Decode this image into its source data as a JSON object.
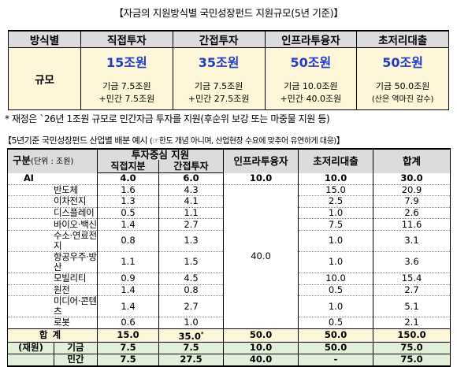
{
  "title1": "【자금의 지원방식별 국민성장펀드 지원규모(5년 기준)】",
  "table1": {
    "corner": "방식별",
    "row_label": "규모",
    "columns": [
      {
        "header": "직접투자",
        "total": "15조원",
        "sub1": "기금 7.5조원",
        "sub2": "+민간 7.5조원"
      },
      {
        "header": "간접투자",
        "total": "35조원",
        "sub1": "기금 7.5조원",
        "sub2": "+민간 27.5조원"
      },
      {
        "header": "인프라투융자",
        "total": "50조원",
        "sub1": "기금 10.0조원",
        "sub2": "+민간 40.0조원"
      },
      {
        "header": "초저리대출",
        "total": "50조원",
        "sub1": "기금 50.0조원",
        "sub2": "(산은 역마진 감수)"
      }
    ]
  },
  "note": "* 재정은 `26년 1조원 규모로 민간자금 투자를 지원(후순위 보강 또는 마중물 지원 등)",
  "title2_main": "【5년기준 국민성장펀드 산업별 배분 예시",
  "title2_paren": "(☞한도 개념 아니며, 산업현장 수요에 맞추어 유연하게 대응)",
  "title2_end": "】",
  "table2": {
    "row_header": "구분",
    "unit": "(단위 : 조원)",
    "group_header": "투자중심 지원",
    "col_direct": "직접지분",
    "col_indirect": "간접투자",
    "col_infra": "인프라투융자",
    "col_loan": "초저리대출",
    "col_total": "합계",
    "infra_merged": "40.0",
    "rows": [
      {
        "name": "AI",
        "direct": "4.0",
        "indirect": "6.0",
        "infra": "10.0",
        "loan": "10.0",
        "total": "30.0"
      },
      {
        "name": "반도체",
        "direct": "1.6",
        "indirect": "4.3",
        "loan": "15.0",
        "total": "20.9"
      },
      {
        "name": "이차전지",
        "direct": "1.3",
        "indirect": "4.1",
        "loan": "2.5",
        "total": "7.9"
      },
      {
        "name": "디스플레이",
        "direct": "0.5",
        "indirect": "1.1",
        "loan": "1.0",
        "total": "2.6"
      },
      {
        "name": "바이오·백신",
        "direct": "1.4",
        "indirect": "2.7",
        "loan": "7.5",
        "total": "11.6"
      },
      {
        "name": "수소·연료전지",
        "direct": "0.8",
        "indirect": "1.3",
        "loan": "1.0",
        "total": "3.1"
      },
      {
        "name": "항공우주·방산",
        "direct": "1.1",
        "indirect": "1.5",
        "loan": "1.0",
        "total": "3.6"
      },
      {
        "name": "모빌리티",
        "direct": "0.9",
        "indirect": "4.5",
        "loan": "10.0",
        "total": "15.4"
      },
      {
        "name": "원전",
        "direct": "1.4",
        "indirect": "0.8",
        "loan": "0.5",
        "total": "2.7"
      },
      {
        "name": "미디어·콘텐츠",
        "direct": "1.4",
        "indirect": "2.7",
        "loan": "1.0",
        "total": "5.1"
      },
      {
        "name": "로봇",
        "direct": "0.6",
        "indirect": "1.0",
        "loan": "0.5",
        "total": "2.1"
      }
    ],
    "total_row": {
      "name": "합계",
      "direct": "15.0",
      "indirect": "35.0",
      "indirect_mark": "*",
      "infra": "50.0",
      "loan": "50.0",
      "total": "150.0"
    },
    "finance_label": "(재원)",
    "fund_row": {
      "name": "기금",
      "direct": "7.5",
      "indirect": "7.5",
      "infra": "10.0",
      "loan": "50.0",
      "total": "75.0"
    },
    "private_row": {
      "name": "민간",
      "direct": "7.5",
      "indirect": "27.5",
      "infra": "40.0",
      "loan": "-",
      "total": "75.0"
    }
  }
}
